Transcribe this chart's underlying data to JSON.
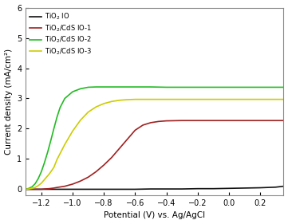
{
  "title": "",
  "xlabel": "Potential (V) vs. Ag/AgCl",
  "ylabel": "Current density (mA/cm²)",
  "xlim": [
    -1.3,
    0.35
  ],
  "ylim": [
    -0.2,
    6
  ],
  "yticks": [
    0,
    1,
    2,
    3,
    4,
    5,
    6
  ],
  "xticks": [
    -1.2,
    -1.0,
    -0.8,
    -0.6,
    -0.4,
    -0.2,
    0.0,
    0.2
  ],
  "legend": [
    {
      "label": "TiO$_2$ IO",
      "color": "#111111"
    },
    {
      "label": "TiO$_2$/CdS IO-1",
      "color": "#a02020"
    },
    {
      "label": "TiO$_2$/CdS IO-2",
      "color": "#22bb22"
    },
    {
      "label": "TiO$_2$/CdS IO-3",
      "color": "#cccc00"
    }
  ],
  "curves": {
    "black": {
      "color": "#111111",
      "x": [
        -1.3,
        -1.25,
        -1.2,
        -1.1,
        -1.0,
        -0.9,
        -0.8,
        -0.7,
        -0.6,
        -0.5,
        -0.4,
        -0.3,
        -0.2,
        -0.1,
        0.0,
        0.1,
        0.2,
        0.3,
        0.35
      ],
      "y": [
        0.0,
        0.0,
        0.0,
        0.0,
        0.0,
        0.0,
        0.0,
        0.0,
        0.0,
        0.01,
        0.01,
        0.01,
        0.02,
        0.02,
        0.03,
        0.04,
        0.05,
        0.07,
        0.1
      ]
    },
    "red": {
      "color": "#a02020",
      "x": [
        -1.3,
        -1.25,
        -1.2,
        -1.18,
        -1.15,
        -1.12,
        -1.1,
        -1.05,
        -1.0,
        -0.95,
        -0.9,
        -0.85,
        -0.8,
        -0.75,
        -0.7,
        -0.65,
        -0.6,
        -0.55,
        -0.5,
        -0.45,
        -0.4,
        -0.3,
        -0.2,
        -0.1,
        0.0,
        0.1,
        0.2,
        0.3,
        0.35
      ],
      "y": [
        0.0,
        0.0,
        0.0,
        0.01,
        0.02,
        0.04,
        0.06,
        0.1,
        0.17,
        0.27,
        0.4,
        0.58,
        0.8,
        1.05,
        1.35,
        1.65,
        1.95,
        2.12,
        2.2,
        2.24,
        2.26,
        2.27,
        2.27,
        2.27,
        2.27,
        2.27,
        2.27,
        2.27,
        2.27
      ]
    },
    "green": {
      "color": "#22bb22",
      "x": [
        -1.3,
        -1.28,
        -1.26,
        -1.24,
        -1.22,
        -1.2,
        -1.18,
        -1.16,
        -1.14,
        -1.12,
        -1.1,
        -1.08,
        -1.05,
        -1.0,
        -0.95,
        -0.9,
        -0.85,
        -0.8,
        -0.75,
        -0.7,
        -0.65,
        -0.6,
        -0.5,
        -0.4,
        -0.3,
        -0.2,
        -0.1,
        0.0,
        0.1,
        0.2,
        0.3,
        0.35
      ],
      "y": [
        0.0,
        0.03,
        0.08,
        0.18,
        0.35,
        0.58,
        0.88,
        1.22,
        1.6,
        2.0,
        2.38,
        2.7,
        3.0,
        3.22,
        3.32,
        3.37,
        3.38,
        3.38,
        3.38,
        3.38,
        3.38,
        3.38,
        3.38,
        3.37,
        3.37,
        3.37,
        3.37,
        3.37,
        3.37,
        3.37,
        3.37,
        3.37
      ]
    },
    "yellow": {
      "color": "#cccc00",
      "x": [
        -1.3,
        -1.28,
        -1.26,
        -1.24,
        -1.22,
        -1.2,
        -1.18,
        -1.15,
        -1.12,
        -1.1,
        -1.05,
        -1.0,
        -0.95,
        -0.9,
        -0.85,
        -0.8,
        -0.75,
        -0.7,
        -0.65,
        -0.6,
        -0.55,
        -0.5,
        -0.4,
        -0.3,
        -0.2,
        -0.1,
        0.0,
        0.1,
        0.2,
        0.3,
        0.35
      ],
      "y": [
        0.0,
        0.01,
        0.03,
        0.06,
        0.12,
        0.2,
        0.32,
        0.5,
        0.72,
        0.98,
        1.48,
        1.92,
        2.28,
        2.55,
        2.72,
        2.83,
        2.9,
        2.94,
        2.96,
        2.97,
        2.97,
        2.97,
        2.97,
        2.97,
        2.97,
        2.97,
        2.97,
        2.97,
        2.97,
        2.97,
        2.97
      ]
    }
  },
  "background_color": "#ffffff",
  "linewidth": 1.2
}
